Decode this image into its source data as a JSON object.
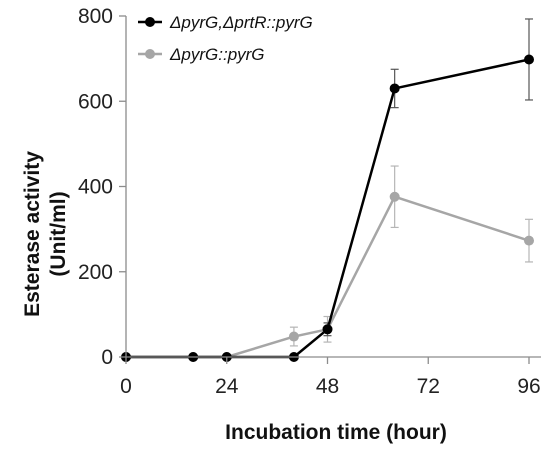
{
  "chart_data": {
    "type": "line",
    "xlabel": "Incubation time (hour)",
    "ylabel_lines": [
      "Esterase activity",
      "(Unit/ml)"
    ],
    "xlim": [
      0,
      96
    ],
    "ylim": [
      0,
      800
    ],
    "xticks": [
      0,
      24,
      48,
      72,
      96
    ],
    "yticks": [
      0,
      200,
      400,
      600,
      800
    ],
    "grid": false,
    "legend": "top-left",
    "series": [
      {
        "name": "ΔpyrG,ΔprtR::pyrG",
        "color": "#000000",
        "x": [
          0,
          16,
          24,
          40,
          48,
          64,
          96
        ],
        "y": [
          0,
          0,
          0,
          0,
          65,
          630,
          698
        ],
        "err": [
          0,
          0,
          0,
          0,
          15,
          45,
          95
        ]
      },
      {
        "name": "ΔpyrG::pyrG",
        "color": "#a6a6a6",
        "x": [
          0,
          16,
          24,
          40,
          48,
          64,
          96
        ],
        "y": [
          0,
          0,
          0,
          48,
          65,
          376,
          273
        ],
        "err": [
          0,
          0,
          0,
          22,
          30,
          72,
          50
        ]
      }
    ]
  }
}
